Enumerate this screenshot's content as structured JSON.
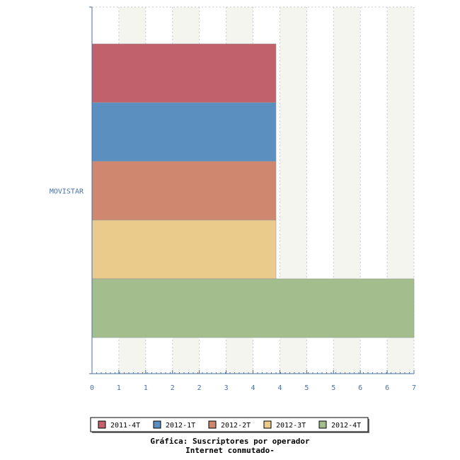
{
  "chart_data": {
    "type": "bar",
    "orientation": "horizontal",
    "categories": [
      "MOVISTAR"
    ],
    "series": [
      {
        "name": "2011-4T",
        "values": [
          4
        ],
        "color": "#c0616b"
      },
      {
        "name": "2012-1T",
        "values": [
          4
        ],
        "color": "#5b8fbf"
      },
      {
        "name": "2012-2T",
        "values": [
          4
        ],
        "color": "#d08770"
      },
      {
        "name": "2012-3T",
        "values": [
          4
        ],
        "color": "#ebcb8b"
      },
      {
        "name": "2012-4T",
        "values": [
          7
        ],
        "color": "#a3be8c"
      }
    ],
    "xlim": [
      0,
      7
    ],
    "x_tick_labels": [
      "0",
      "1",
      "1",
      "2",
      "2",
      "3",
      "4",
      "4",
      "5",
      "5",
      "6",
      "6",
      "7"
    ],
    "grid": true,
    "legend_position": "bottom",
    "title_lines": [
      "Gráfica: Suscriptores por operador",
      "Internet conmutado-"
    ],
    "axis_color": "#4a6fa5",
    "stripe_color": "#f5f5f0"
  }
}
